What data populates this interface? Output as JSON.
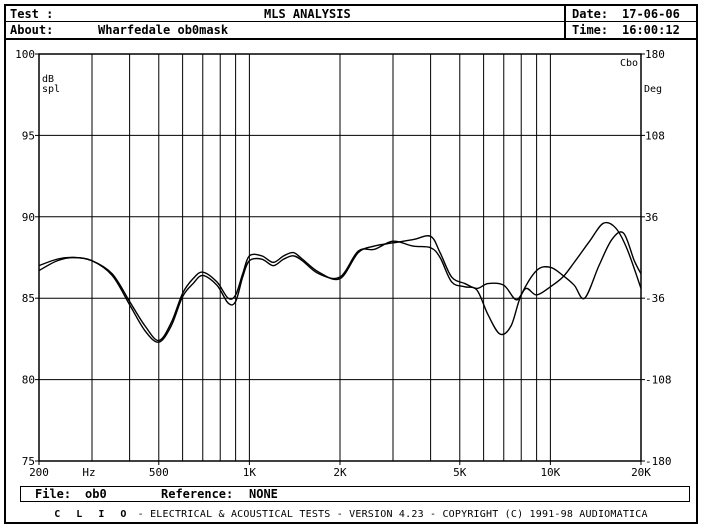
{
  "header": {
    "test_label": "Test :",
    "about_label": "About:",
    "about_value": "Wharfedale ob0mask",
    "title": "MLS ANALYSIS",
    "date_label": "Date:",
    "date_value": "17-06-06",
    "time_label": "Time:",
    "time_value": "16:00:12"
  },
  "footer": {
    "file_label": "File:",
    "file_value": "ob0",
    "reference_label": "Reference:",
    "reference_value": "NONE",
    "credits_clio": "C L I O",
    "credits_text": "-  ELECTRICAL & ACOUSTICAL TESTS  -  VERSION 4.23  -  COPYRIGHT (C) 1991-98 AUDIOMATICA"
  },
  "chart_data": {
    "type": "line",
    "xscale": "log",
    "xlim": [
      200,
      20000
    ],
    "ylim": [
      75,
      100
    ],
    "y2lim": [
      -180,
      180
    ],
    "ylabel": "dB spl",
    "y2label": "Deg",
    "corner_label": "Cbo",
    "xlabel_unit": "Hz",
    "grid": true,
    "x_gridlines": [
      200,
      300,
      400,
      500,
      600,
      700,
      800,
      900,
      1000,
      2000,
      3000,
      4000,
      5000,
      6000,
      7000,
      8000,
      9000,
      10000,
      20000
    ],
    "x_ticks": [
      {
        "value": 200,
        "label": "200"
      },
      {
        "value": 500,
        "label": "500"
      },
      {
        "value": 1000,
        "label": "1K"
      },
      {
        "value": 2000,
        "label": "2K"
      },
      {
        "value": 5000,
        "label": "5K"
      },
      {
        "value": 10000,
        "label": "10K"
      },
      {
        "value": 20000,
        "label": "20K"
      }
    ],
    "y_ticks": [
      {
        "value": 100,
        "label": "100"
      },
      {
        "value": 95,
        "label": "95"
      },
      {
        "value": 90,
        "label": "90"
      },
      {
        "value": 85,
        "label": "85"
      },
      {
        "value": 80,
        "label": "80"
      },
      {
        "value": 75,
        "label": "75"
      }
    ],
    "y2_ticks": [
      {
        "value": 180,
        "label": "180"
      },
      {
        "value": 108,
        "label": "108"
      },
      {
        "value": 36,
        "label": "36"
      },
      {
        "value": -36,
        "label": "-36"
      },
      {
        "value": -108,
        "label": "-108"
      },
      {
        "value": -180,
        "label": "-180"
      }
    ],
    "series": [
      {
        "points": [
          [
            200,
            86.7
          ],
          [
            230,
            87.3
          ],
          [
            260,
            87.5
          ],
          [
            300,
            87.3
          ],
          [
            350,
            86.5
          ],
          [
            400,
            84.8
          ],
          [
            450,
            83.3
          ],
          [
            500,
            82.4
          ],
          [
            550,
            83.5
          ],
          [
            600,
            85.3
          ],
          [
            650,
            86.2
          ],
          [
            700,
            86.6
          ],
          [
            780,
            86.0
          ],
          [
            850,
            85.0
          ],
          [
            900,
            85.2
          ],
          [
            950,
            86.5
          ],
          [
            1000,
            87.6
          ],
          [
            1100,
            87.6
          ],
          [
            1200,
            87.2
          ],
          [
            1300,
            87.6
          ],
          [
            1400,
            87.8
          ],
          [
            1500,
            87.4
          ],
          [
            1700,
            86.6
          ],
          [
            2000,
            86.2
          ],
          [
            2300,
            87.8
          ],
          [
            2600,
            88.2
          ],
          [
            3000,
            88.4
          ],
          [
            3500,
            88.6
          ],
          [
            4000,
            88.8
          ],
          [
            4300,
            87.8
          ],
          [
            4700,
            86.3
          ],
          [
            5200,
            85.9
          ],
          [
            5700,
            85.6
          ],
          [
            6200,
            85.9
          ],
          [
            7000,
            85.8
          ],
          [
            7700,
            84.9
          ],
          [
            8300,
            85.6
          ],
          [
            9000,
            85.2
          ],
          [
            10000,
            85.7
          ],
          [
            11000,
            86.3
          ],
          [
            12000,
            87.2
          ],
          [
            13500,
            88.5
          ],
          [
            15000,
            89.6
          ],
          [
            16500,
            89.3
          ],
          [
            18000,
            88.0
          ],
          [
            20000,
            85.6
          ]
        ]
      },
      {
        "points": [
          [
            200,
            87.0
          ],
          [
            230,
            87.4
          ],
          [
            260,
            87.5
          ],
          [
            300,
            87.3
          ],
          [
            350,
            86.4
          ],
          [
            400,
            84.6
          ],
          [
            450,
            83.0
          ],
          [
            500,
            82.3
          ],
          [
            550,
            83.3
          ],
          [
            600,
            85.1
          ],
          [
            650,
            85.9
          ],
          [
            700,
            86.4
          ],
          [
            780,
            85.8
          ],
          [
            850,
            84.7
          ],
          [
            900,
            84.8
          ],
          [
            950,
            86.3
          ],
          [
            1000,
            87.3
          ],
          [
            1100,
            87.4
          ],
          [
            1200,
            87.0
          ],
          [
            1300,
            87.4
          ],
          [
            1400,
            87.6
          ],
          [
            1500,
            87.3
          ],
          [
            1700,
            86.5
          ],
          [
            2000,
            86.3
          ],
          [
            2300,
            87.9
          ],
          [
            2600,
            88.0
          ],
          [
            3000,
            88.5
          ],
          [
            3500,
            88.2
          ],
          [
            4000,
            88.1
          ],
          [
            4300,
            87.5
          ],
          [
            4700,
            86.0
          ],
          [
            5200,
            85.7
          ],
          [
            5700,
            85.5
          ],
          [
            6200,
            84.0
          ],
          [
            6800,
            82.8
          ],
          [
            7400,
            83.3
          ],
          [
            8000,
            85.2
          ],
          [
            9000,
            86.7
          ],
          [
            10000,
            86.9
          ],
          [
            11000,
            86.4
          ],
          [
            12000,
            85.8
          ],
          [
            13000,
            85.0
          ],
          [
            14500,
            87.0
          ],
          [
            16000,
            88.6
          ],
          [
            17500,
            89.0
          ],
          [
            19000,
            87.3
          ],
          [
            20000,
            86.5
          ]
        ]
      }
    ]
  }
}
